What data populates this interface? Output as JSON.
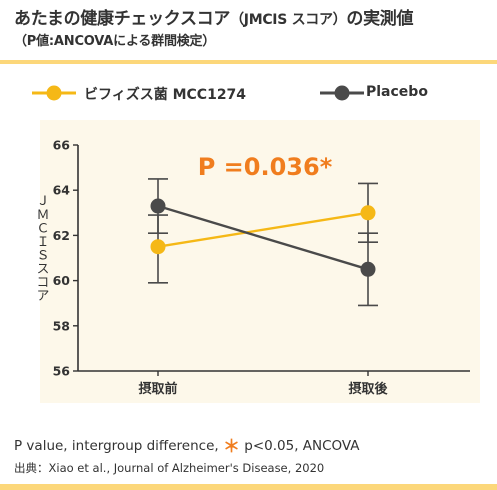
{
  "header": {
    "title_main": "あたまの健康チェックスコア",
    "title_paren": "（JMCIS スコア）",
    "title_tail": "の実測値",
    "subtitle": "（P値:ANCOVAによる群間検定）"
  },
  "legend": [
    {
      "label": "ビフィズス菌 MCC1274",
      "color": "#f5b816"
    },
    {
      "label": "Placebo",
      "color": "#4a4a4a"
    }
  ],
  "chart_data": {
    "type": "line",
    "categories": [
      "摂取前",
      "摂取後"
    ],
    "ylabel": "ＪＭＣＩＳスコア",
    "ylim": [
      56,
      66
    ],
    "yticks": [
      56,
      58,
      60,
      62,
      64,
      66
    ],
    "series": [
      {
        "name": "ビフィズス菌 MCC1274",
        "color": "#f5b816",
        "values": [
          61.5,
          63.0
        ],
        "err_low": [
          59.9,
          61.7
        ],
        "err_high": [
          62.9,
          64.3
        ]
      },
      {
        "name": "Placebo",
        "color": "#4a4a4a",
        "values": [
          63.3,
          60.5
        ],
        "err_low": [
          62.1,
          58.9
        ],
        "err_high": [
          64.5,
          62.1
        ]
      }
    ],
    "annotation": "P =0.036*",
    "annotation_color": "#f07d1e"
  },
  "footer": {
    "note_prefix": "P value, intergroup difference, ",
    "note_ast": "＊",
    "note_suffix": " p<0.05, ANCOVA",
    "source": "出典：Xiao et al., Journal of Alzheimer's Disease, 2020"
  },
  "colors": {
    "accent_band": "#fcd77a",
    "plot_bg": "#fdf8ea",
    "axis": "#333333"
  }
}
